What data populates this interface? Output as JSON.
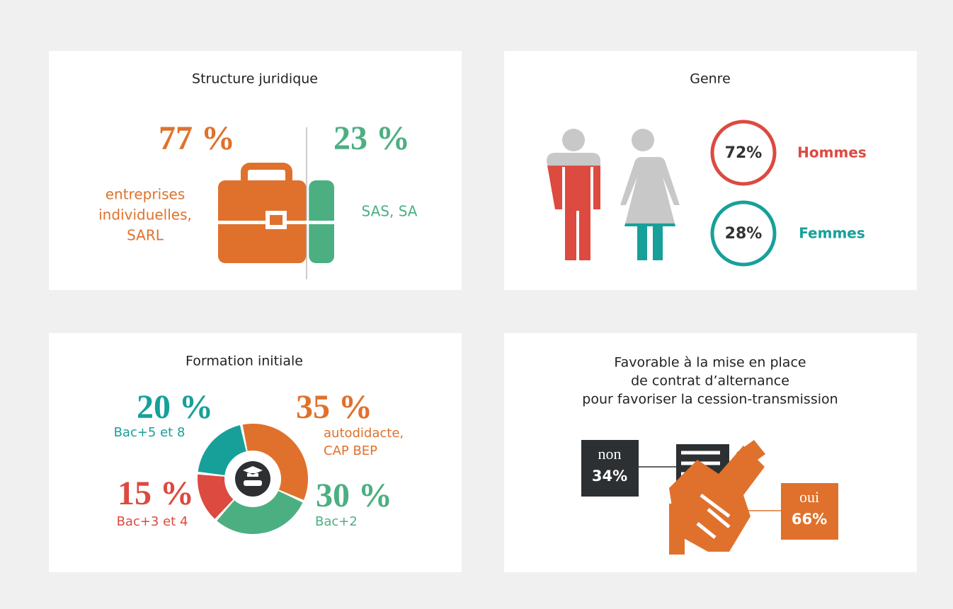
{
  "structure": {
    "title": "Structure juridique",
    "items": [
      {
        "value": 77,
        "value_label": "77 %",
        "lines": [
          "entreprises",
          "individuelles,",
          "SARL"
        ],
        "color": "#e0712c"
      },
      {
        "value": 23,
        "value_label": "23 %",
        "lines": [
          "SAS, SA"
        ],
        "color": "#4caf82"
      }
    ]
  },
  "genre": {
    "title": "Genre",
    "items": [
      {
        "value": 72,
        "value_label": "72%",
        "name": "Hommes",
        "color": "#dc4a40"
      },
      {
        "value": 28,
        "value_label": "28%",
        "name": "Femmes",
        "color": "#17a09a"
      }
    ]
  },
  "formation": {
    "type": "donut",
    "title": "Formation initiale",
    "items": [
      {
        "value": 35,
        "value_label": "35 %",
        "lines": [
          "autodidacte,",
          "CAP BEP"
        ],
        "color": "#e0712c"
      },
      {
        "value": 30,
        "value_label": "30 %",
        "lines": [
          "Bac+2"
        ],
        "color": "#4caf82"
      },
      {
        "value": 15,
        "value_label": "15 %",
        "lines": [
          "Bac+3 et 4"
        ],
        "color": "#dc4a40"
      },
      {
        "value": 20,
        "value_label": "20 %",
        "lines": [
          "Bac+5 et 8"
        ],
        "color": "#17a09a"
      }
    ]
  },
  "alternance": {
    "title_lines": [
      "Favorable à la mise en place",
      "de contrat d’alternance",
      "pour favoriser la cession-transmission"
    ],
    "items": [
      {
        "name": "non",
        "value_label": "34%",
        "color": "#2d3033"
      },
      {
        "name": "oui",
        "value_label": "66%",
        "color": "#e0712c"
      }
    ]
  }
}
